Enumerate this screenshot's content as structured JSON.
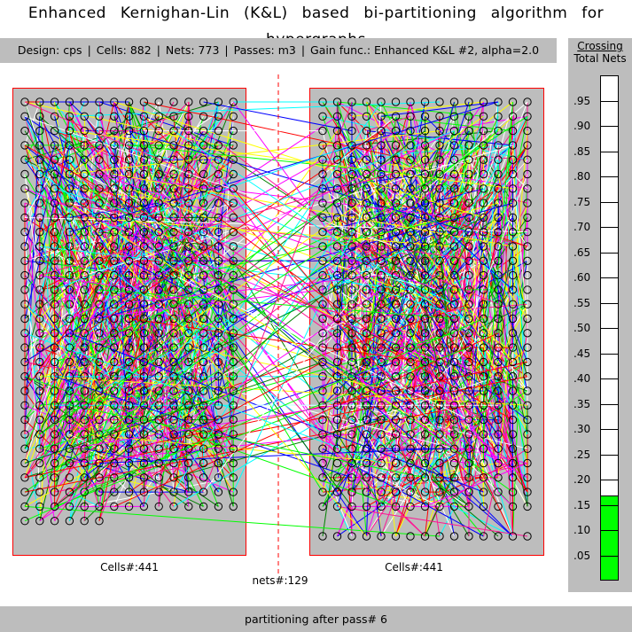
{
  "title": "Enhanced Kernighan-Lin (K&L) based bi-partitioning algorithm for hypergraphs",
  "info": {
    "design": "Design: cps",
    "cells": "Cells: 882",
    "nets": "Nets: 773",
    "passes": "Passes: m3",
    "gain": "Gain func.: Enhanced K&L #2, alpha=2.0"
  },
  "meter": {
    "title_line1": "Crossing",
    "title_line2": "Total Nets",
    "ticks": [
      ".95",
      ".90",
      ".85",
      ".80",
      ".75",
      ".70",
      ".65",
      ".60",
      ".55",
      ".50",
      ".45",
      ".40",
      ".35",
      ".30",
      ".25",
      ".20",
      ".15",
      ".10",
      ".05"
    ],
    "value": 0.167,
    "fill_color": "#00ff00"
  },
  "partitions": {
    "left_label": "Cells#:441",
    "right_label": "Cells#:441",
    "cut_label": "nets#:129",
    "border_color": "#ff0000",
    "background": "#bdbdbd"
  },
  "net_colors": [
    "#ff0000",
    "#0000ff",
    "#00ff00",
    "#ffff00",
    "#00ffff",
    "#ff00ff",
    "#008000",
    "#ff1493",
    "#ffffff"
  ],
  "status": "partitioning after pass# 6"
}
